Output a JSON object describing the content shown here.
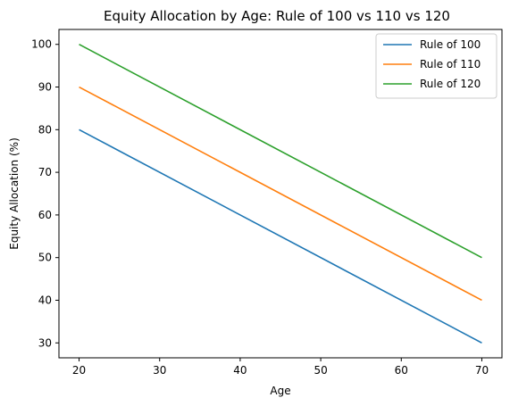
{
  "chart_data": {
    "type": "line",
    "title": "Equity Allocation by Age: Rule of 100 vs 110 vs 120",
    "xlabel": "Age",
    "ylabel": "Equity Allocation (%)",
    "x": [
      20,
      70
    ],
    "xlim": [
      17.5,
      72.5
    ],
    "ylim": [
      26.5,
      103.5
    ],
    "xticks": [
      20,
      30,
      40,
      50,
      60,
      70
    ],
    "yticks": [
      30,
      40,
      50,
      60,
      70,
      80,
      90,
      100
    ],
    "grid": false,
    "legend_position": "top-right",
    "series": [
      {
        "name": "Rule of 100",
        "color": "#1f77b4",
        "values": [
          80,
          30
        ]
      },
      {
        "name": "Rule of 110",
        "color": "#ff7f0e",
        "values": [
          90,
          40
        ]
      },
      {
        "name": "Rule of 120",
        "color": "#2ca02c",
        "values": [
          100,
          50
        ]
      }
    ]
  }
}
